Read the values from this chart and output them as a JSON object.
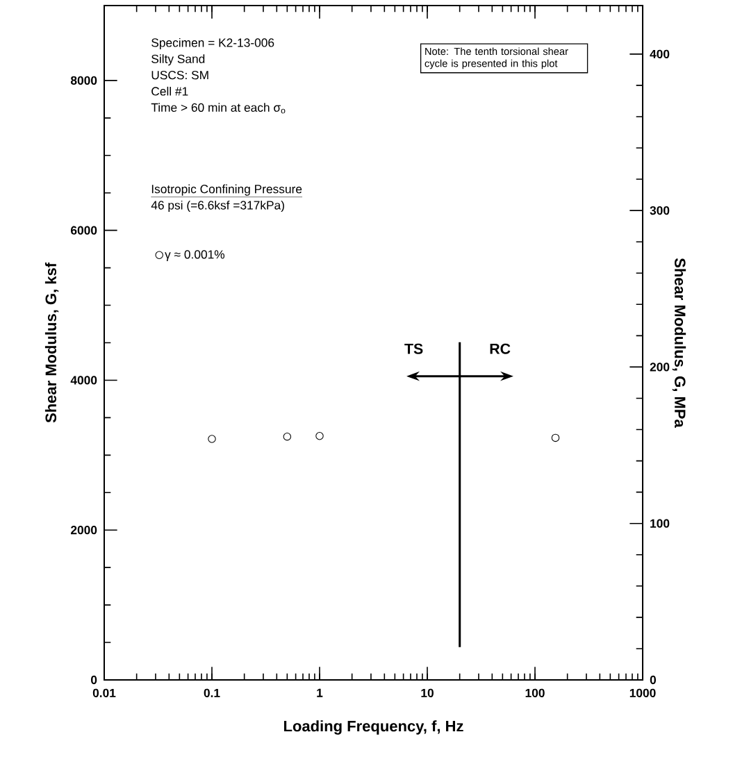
{
  "chart_data": {
    "type": "scatter",
    "xlabel": "Loading Frequency, f, Hz",
    "ylabel": "Shear Modulus, G, ksf",
    "y2label": "Shear Modulus, G, MPa",
    "log": "x",
    "xlim": [
      0.01,
      1000
    ],
    "xticks": [
      0.01,
      0.1,
      1,
      10,
      100,
      1000
    ],
    "ylim": [
      0,
      9000
    ],
    "yticks": [
      0,
      2000,
      4000,
      6000,
      8000
    ],
    "y2lim": [
      0,
      431
    ],
    "y2ticks": [
      0,
      100,
      200,
      300,
      400
    ],
    "series": [
      {
        "name": "γ ≈ 0.001%",
        "color": "#000000",
        "x": [
          0.1,
          0.5,
          1,
          155
        ],
        "values": [
          3216,
          3247,
          3256,
          3231
        ]
      }
    ],
    "marker": "circle",
    "legend": "left",
    "grid": false,
    "annotations": [
      "Specimen = K2-13-006",
      "Silty Sand",
      "USCS: SM",
      "Cell #1",
      "Time > 60 min at each σ$_{o}$",
      "Isotropic Confining Pressure",
      "46 psi (=6.6ksf =317kPa)",
      "Note: The tenth torsional shear cycle is presented in this plot",
      "TS",
      "RC"
    ]
  }
}
